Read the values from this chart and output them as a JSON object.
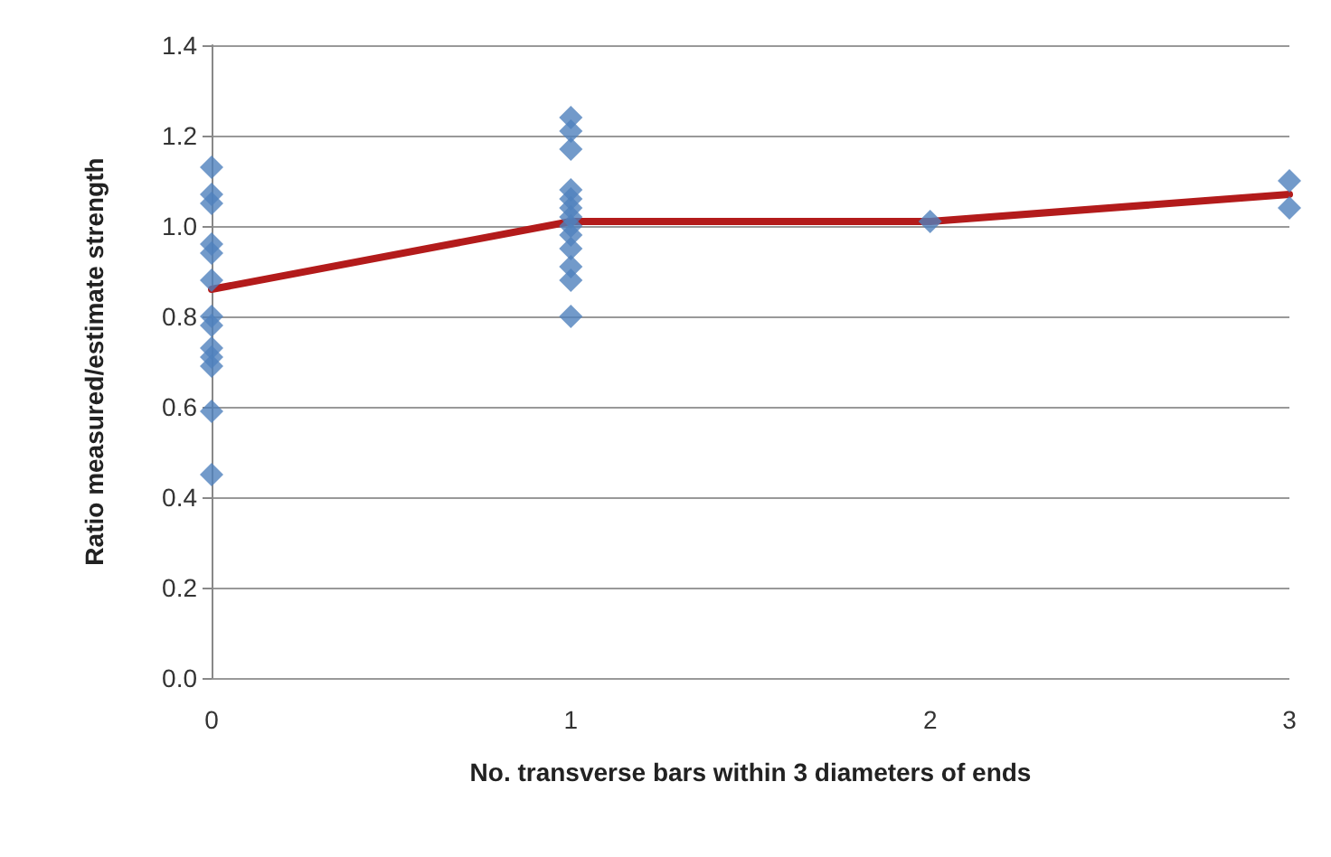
{
  "chart_data": {
    "type": "scatter",
    "xlabel": "No. transverse bars within 3 diameters of ends",
    "ylabel": "Ratio measured/estimate strength",
    "xlim": [
      0,
      3
    ],
    "xticks": [
      0,
      1,
      2,
      3
    ],
    "ylim": [
      0,
      1.4
    ],
    "yticks": [
      {
        "value": 0,
        "label": "0.0"
      },
      0.2,
      0.4,
      0.6,
      0.8,
      {
        "value": 1,
        "label": "1.0"
      },
      1.2,
      1.4
    ],
    "grid": "y",
    "series": [
      {
        "color": "#4f81bd",
        "marker": "diamond",
        "x": [
          0,
          0,
          0,
          0,
          0,
          0,
          0,
          0,
          0,
          0,
          0,
          0,
          0,
          1,
          1,
          1,
          1,
          1,
          1,
          1,
          1,
          1,
          1,
          1,
          1,
          1,
          2,
          3,
          3
        ],
        "values": [
          1.13,
          1.07,
          1.05,
          0.96,
          0.94,
          0.88,
          0.8,
          0.78,
          0.73,
          0.71,
          0.69,
          0.59,
          0.45,
          1.24,
          1.21,
          1.17,
          1.08,
          1.06,
          1.04,
          1.02,
          1.0,
          0.98,
          0.95,
          0.91,
          0.88,
          0.8,
          1.01,
          1.1,
          1.04
        ]
      },
      {
        "type": "line",
        "color": "#b31b1b",
        "marker": "none",
        "line_style": "solid",
        "x": [
          0,
          1,
          2,
          3
        ],
        "values": [
          0.86,
          1.01,
          1.01,
          1.07
        ]
      }
    ]
  }
}
